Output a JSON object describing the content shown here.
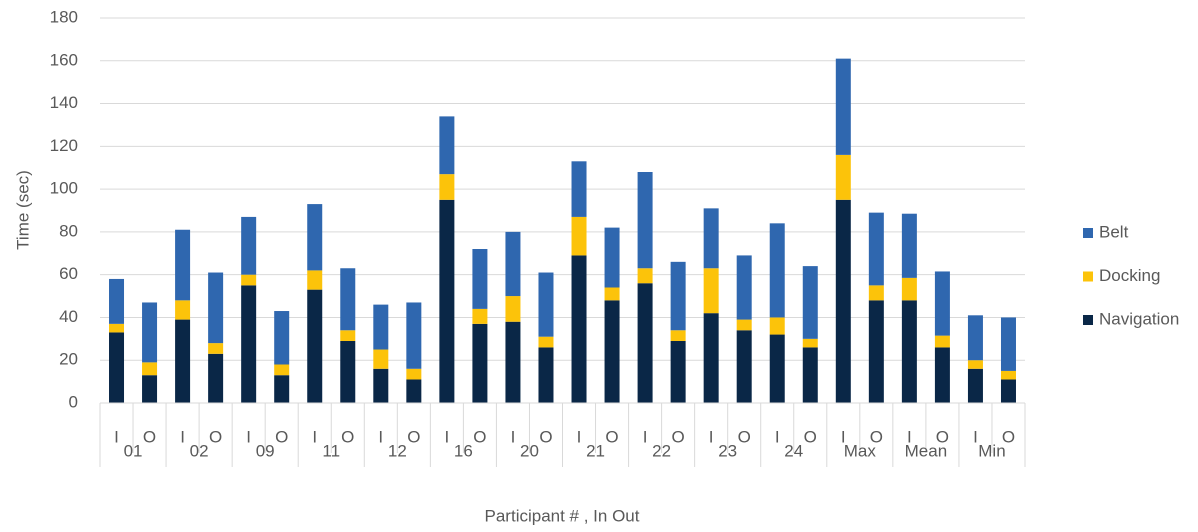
{
  "chart_data": {
    "type": "stacked_bar",
    "y_label": "Time (sec)",
    "x_label": "Participant # , In Out",
    "categories": [
      "I",
      "O",
      "I",
      "O",
      "I",
      "O",
      "I",
      "O",
      "I",
      "O",
      "I",
      "O",
      "I",
      "O",
      "I",
      "O",
      "I",
      "O",
      "I",
      "O",
      "I",
      "O",
      "I",
      "O",
      "I",
      "O",
      "I",
      "O"
    ],
    "groups": [
      "01",
      "02",
      "09",
      "11",
      "12",
      "16",
      "20",
      "21",
      "22",
      "23",
      "24",
      "Max",
      "Mean",
      "Min"
    ],
    "series": [
      {
        "name": "Navigation",
        "color": "#0a2747",
        "values": [
          33,
          13,
          39,
          23,
          55,
          13,
          53,
          29,
          16,
          11,
          95,
          37,
          38,
          26,
          69,
          48,
          56,
          29,
          42,
          34,
          32,
          26,
          95,
          48,
          48,
          26,
          16,
          11
        ]
      },
      {
        "name": "Docking",
        "color": "#fcc30a",
        "values": [
          4,
          6,
          9,
          5,
          5,
          5,
          9,
          5,
          9,
          5,
          12,
          7,
          12,
          5,
          18,
          6,
          7,
          5,
          21,
          5,
          8,
          4,
          21,
          7,
          10.5,
          5.5,
          4,
          4
        ]
      },
      {
        "name": "Belt",
        "color": "#2f67af",
        "values": [
          21,
          28,
          33,
          33,
          27,
          25,
          31,
          29,
          21,
          31,
          27,
          28,
          30,
          30,
          26,
          28,
          45,
          32,
          28,
          30,
          44,
          34,
          45,
          34,
          30,
          30,
          21,
          25
        ]
      }
    ],
    "ylim": [
      0,
      180
    ],
    "yticks": [
      0,
      20,
      40,
      60,
      80,
      100,
      120,
      140,
      160,
      180
    ],
    "grid": true,
    "legend": "right"
  }
}
